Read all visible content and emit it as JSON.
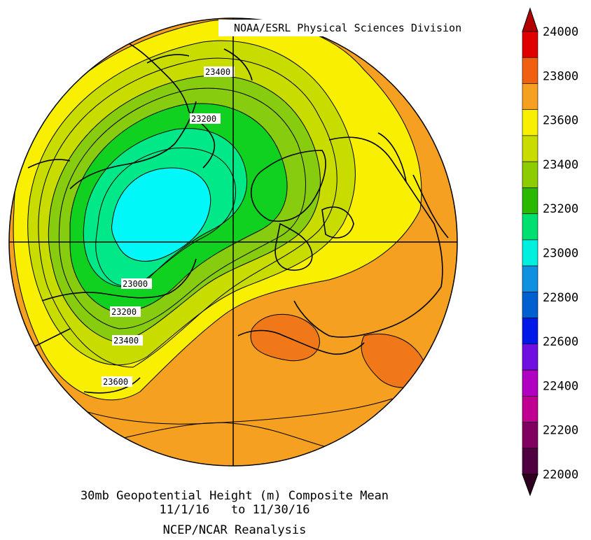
{
  "credit": "NOAA/ESRL Physical Sciences Division",
  "caption": {
    "line1": "30mb Geopotential Height (m) Composite Mean",
    "line2": "11/1/16   to 11/30/16",
    "line3": "NCEP/NCAR Reanalysis"
  },
  "colorbar": {
    "labels": [
      "24000",
      "23800",
      "23600",
      "23400",
      "23200",
      "23000",
      "22800",
      "22600",
      "22400",
      "22200",
      "22000"
    ],
    "colors_top_to_bottom": [
      "#e00000",
      "#f06010",
      "#f5a020",
      "#f8f000",
      "#c8dc00",
      "#8ccc00",
      "#2ab800",
      "#00e070",
      "#00f0e0",
      "#1090e0",
      "#0060d0",
      "#0018e8",
      "#7010e0",
      "#b000c0",
      "#c00090",
      "#800060",
      "#500040"
    ],
    "top_arrow_color": "#b00000",
    "bottom_arrow_color": "#300020"
  },
  "contour_labels": [
    "23400",
    "23200",
    "23000",
    "23200",
    "23400",
    "23600"
  ],
  "map": {
    "projection": "north polar stereographic",
    "field_colors": {
      "low_center": "#00f8f8",
      "mid_low": "#00e888",
      "mid": "#10d020",
      "mid_high": "#88cc10",
      "high_green_yellow": "#c8dc00",
      "yellow": "#f8f000",
      "orange": "#f5a020",
      "deep_orange": "#f07818"
    }
  }
}
